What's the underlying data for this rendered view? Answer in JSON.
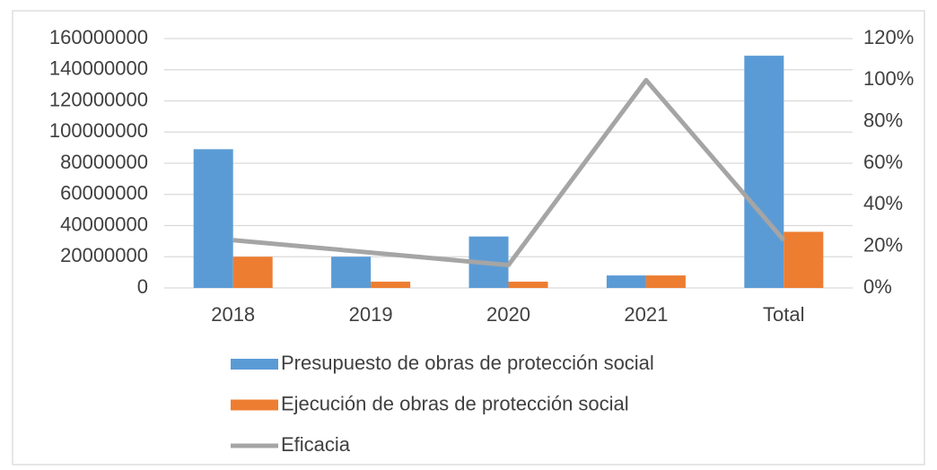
{
  "chart_data": {
    "type": "bar",
    "categories": [
      "2018",
      "2019",
      "2020",
      "2021",
      "Total"
    ],
    "series": [
      {
        "name": "Presupuesto de obras de protección social",
        "color": "#5b9bd5",
        "values": [
          89000000,
          20000000,
          33000000,
          8000000,
          149000000
        ]
      },
      {
        "name": "Ejecución de obras de protección social",
        "color": "#ed7d31",
        "values": [
          20000000,
          4000000,
          4000000,
          8000000,
          36000000
        ]
      },
      {
        "name": "Eficacia",
        "type": "line",
        "axis": "y2",
        "color": "#a5a5a5",
        "values": [
          23,
          17,
          11,
          100,
          23
        ]
      }
    ],
    "ylim": [
      0,
      160000000
    ],
    "yticks": [
      0,
      20000000,
      40000000,
      60000000,
      80000000,
      100000000,
      120000000,
      140000000,
      160000000
    ],
    "y2lim": [
      0,
      120
    ],
    "y2ticks": [
      {
        "value": 0,
        "label": "0%"
      },
      {
        "value": 20,
        "label": "20%"
      },
      {
        "value": 40,
        "label": "40%"
      },
      {
        "value": 60,
        "label": "60%"
      },
      {
        "value": 80,
        "label": "80%"
      },
      {
        "value": 100,
        "label": "100%"
      },
      {
        "value": 120,
        "label": "120%"
      }
    ],
    "grid": true,
    "legend": "bottom"
  }
}
